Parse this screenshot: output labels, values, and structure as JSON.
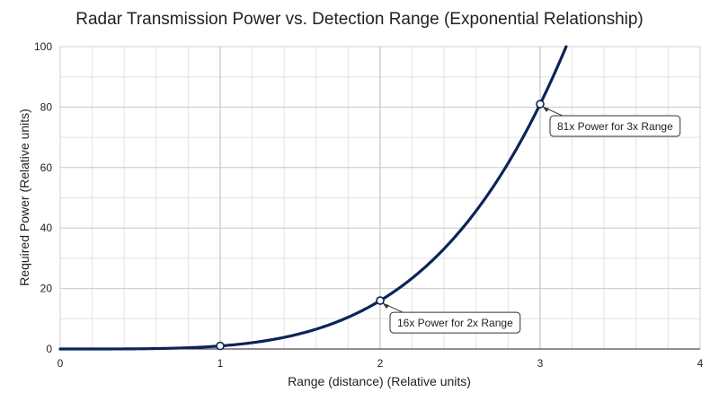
{
  "chart_data": {
    "type": "line",
    "title": "Radar Transmission Power vs. Detection Range (Exponential Relationship)",
    "xlabel": "Range (distance) (Relative units)",
    "ylabel": "Required Power (Relative units)",
    "xlim": [
      0,
      4
    ],
    "ylim": [
      0,
      100
    ],
    "x_ticks": [
      0,
      1,
      2,
      3,
      4
    ],
    "y_ticks": [
      0,
      20,
      40,
      60,
      80,
      100
    ],
    "x_minor_step": 0.2,
    "y_minor_step": 10,
    "grid": true,
    "line_color": "#0b2458",
    "series": [
      {
        "function": "y = x^4",
        "x_range": [
          0,
          3.2
        ],
        "samples": [
          {
            "x": 0,
            "y": 0
          },
          {
            "x": 0.5,
            "y": 0.06
          },
          {
            "x": 1,
            "y": 1
          },
          {
            "x": 1.5,
            "y": 5.06
          },
          {
            "x": 2,
            "y": 16
          },
          {
            "x": 2.5,
            "y": 39.06
          },
          {
            "x": 3,
            "y": 81
          },
          {
            "x": 3.16,
            "y": 100
          }
        ]
      }
    ],
    "markers": [
      {
        "x": 1,
        "y": 1
      },
      {
        "x": 2,
        "y": 16
      },
      {
        "x": 3,
        "y": 81
      }
    ],
    "annotations": [
      {
        "text": "16x Power for 2x Range",
        "x": 2,
        "y": 16
      },
      {
        "text": "81x Power for 3x Range",
        "x": 3,
        "y": 81
      }
    ]
  }
}
